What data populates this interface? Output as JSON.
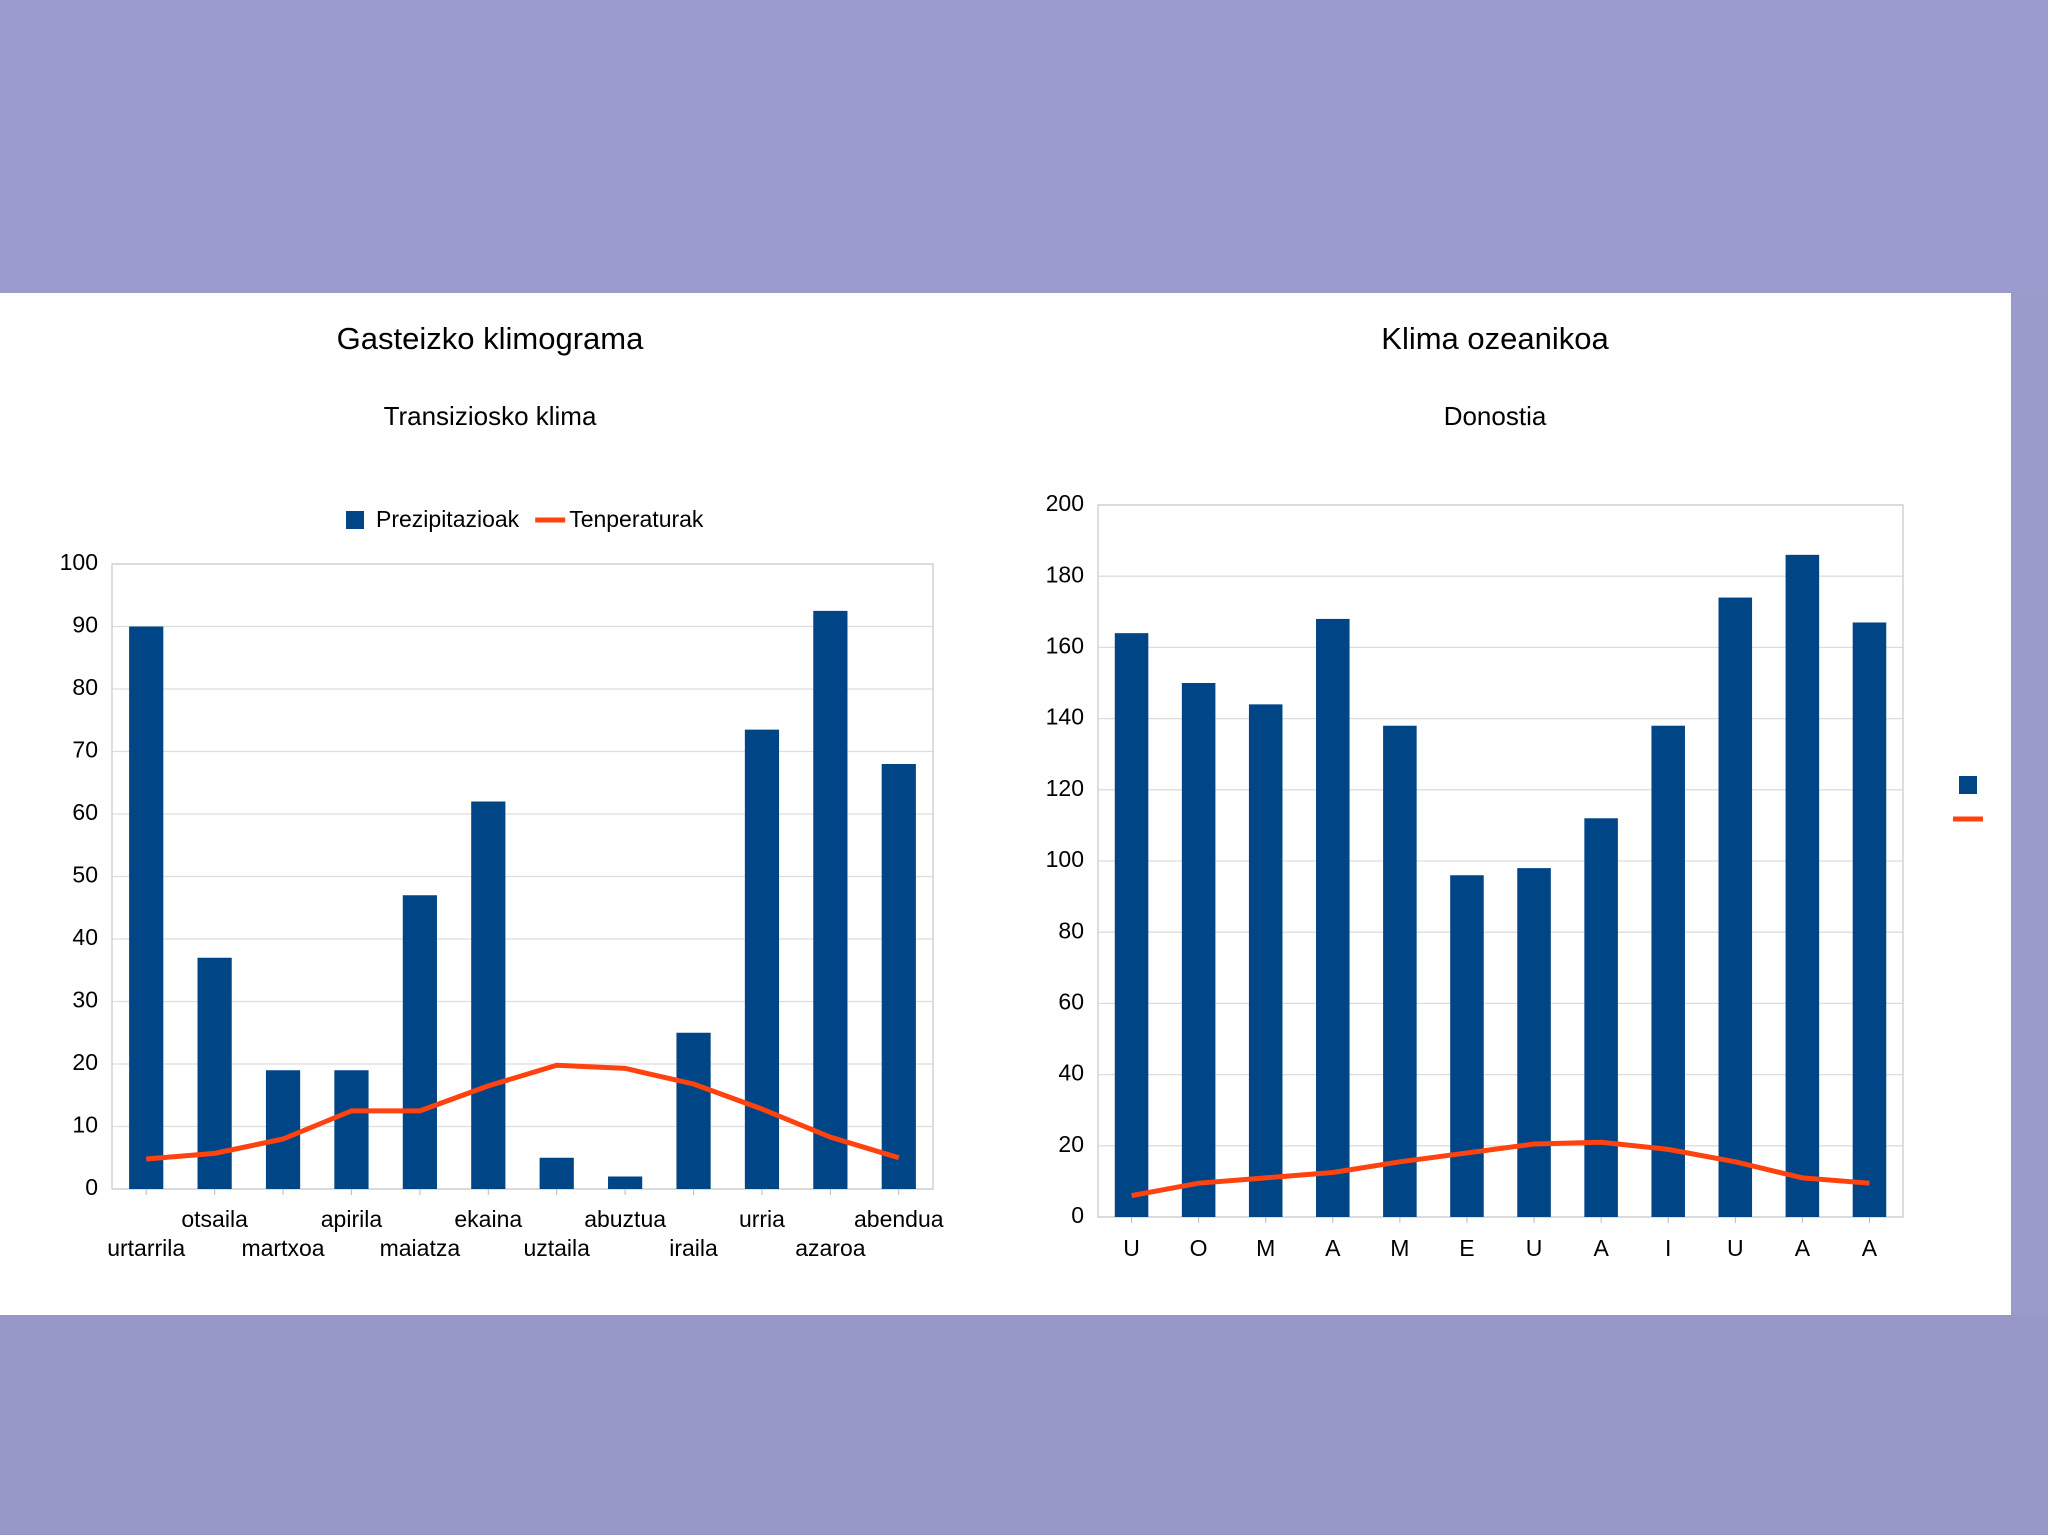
{
  "chart_data": [
    {
      "type": "bar",
      "title": "Gasteizko klimograma",
      "subtitle": "Transiziosko klima",
      "categories": [
        "urtarrila",
        "otsaila",
        "martxoa",
        "apirila",
        "maiatza",
        "ekaina",
        "uztaila",
        "abuztua",
        "iraila",
        "urria",
        "azaroa",
        "abendua"
      ],
      "series": [
        {
          "name": "Prezipitazioak",
          "type": "bar",
          "color": "#004586",
          "values": [
            90,
            37,
            19,
            19,
            47,
            62,
            5,
            2,
            25,
            73.5,
            92.5,
            68
          ]
        },
        {
          "name": "Tenperaturak",
          "type": "line",
          "color": "#ff420e",
          "values": [
            4.8,
            5.7,
            8,
            12.5,
            12.5,
            16.5,
            19.8,
            19.3,
            16.8,
            12.8,
            8.3,
            5
          ]
        }
      ],
      "ylim": [
        0,
        100
      ],
      "yticks": [
        0,
        10,
        20,
        30,
        40,
        50,
        60,
        70,
        80,
        90,
        100
      ],
      "grid": true,
      "legend": "top"
    },
    {
      "type": "bar",
      "title": "Klima ozeanikoa",
      "subtitle": "Donostia",
      "categories": [
        "U",
        "O",
        "M",
        "A",
        "M",
        "E",
        "U",
        "A",
        "I",
        "U",
        "A",
        "A"
      ],
      "series": [
        {
          "type": "bar",
          "color": "#004586",
          "values": [
            164,
            150,
            144,
            168,
            138,
            96,
            98,
            112,
            138,
            174,
            186,
            167
          ]
        },
        {
          "type": "line",
          "color": "#ff420e",
          "values": [
            6,
            9.5,
            11,
            12.5,
            15.5,
            18,
            20.5,
            21,
            19,
            15.5,
            11,
            9.5
          ]
        }
      ],
      "ylim": [
        0,
        200
      ],
      "yticks": [
        0,
        20,
        40,
        60,
        80,
        100,
        120,
        140,
        160,
        180,
        200
      ],
      "grid": true,
      "legend": "right"
    }
  ]
}
